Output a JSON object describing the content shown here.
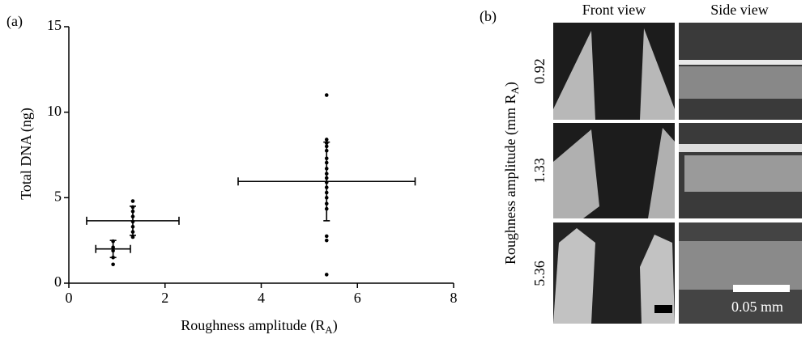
{
  "chart_data": {
    "type": "scatter",
    "panel_label": "(a)",
    "x_label": "Roughness amplitude (R",
    "x_label_sub": "A",
    "x_label_end": ")",
    "y_label": "Total DNA (ng)",
    "xlim": [
      0,
      8
    ],
    "xticks": [
      0,
      2,
      4,
      6,
      8
    ],
    "ylim": [
      0,
      15
    ],
    "yticks": [
      0,
      5,
      10,
      15
    ],
    "color": "#000000",
    "points": {
      "x": [
        0.92,
        0.92,
        0.92,
        0.92,
        0.92,
        1.33,
        1.33,
        1.33,
        1.33,
        1.33,
        1.33,
        1.33,
        1.33,
        5.36,
        5.36,
        5.36,
        5.36,
        5.36,
        5.36,
        5.36,
        5.36,
        5.36,
        5.36,
        5.36,
        5.36,
        5.36,
        5.36,
        5.36,
        5.36,
        5.36,
        5.36,
        5.36
      ],
      "y": [
        2.45,
        2.1,
        1.9,
        1.5,
        1.1,
        4.8,
        4.45,
        4.2,
        3.9,
        3.6,
        3.3,
        3.0,
        2.7,
        11.0,
        8.4,
        8.2,
        8.0,
        7.75,
        7.3,
        7.05,
        6.7,
        6.4,
        6.15,
        5.9,
        5.6,
        5.3,
        5.0,
        4.65,
        4.35,
        2.75,
        2.5,
        0.5
      ]
    },
    "means": {
      "x": [
        0.92,
        1.33,
        5.36
      ],
      "xerr": [
        0.36,
        0.96,
        1.84
      ],
      "y": [
        2.0,
        3.65,
        5.95
      ],
      "yerr": [
        0.5,
        0.85,
        2.3
      ]
    }
  },
  "panel_b": {
    "label": "(b)",
    "columns": [
      "Front view",
      "Side view"
    ],
    "rows": [
      "0.92",
      "1.33",
      "5.36"
    ],
    "y_label": "Roughness amplitude (mm R",
    "y_label_sub": "A",
    "y_label_end": ")",
    "scale_label": "0.05 mm"
  }
}
